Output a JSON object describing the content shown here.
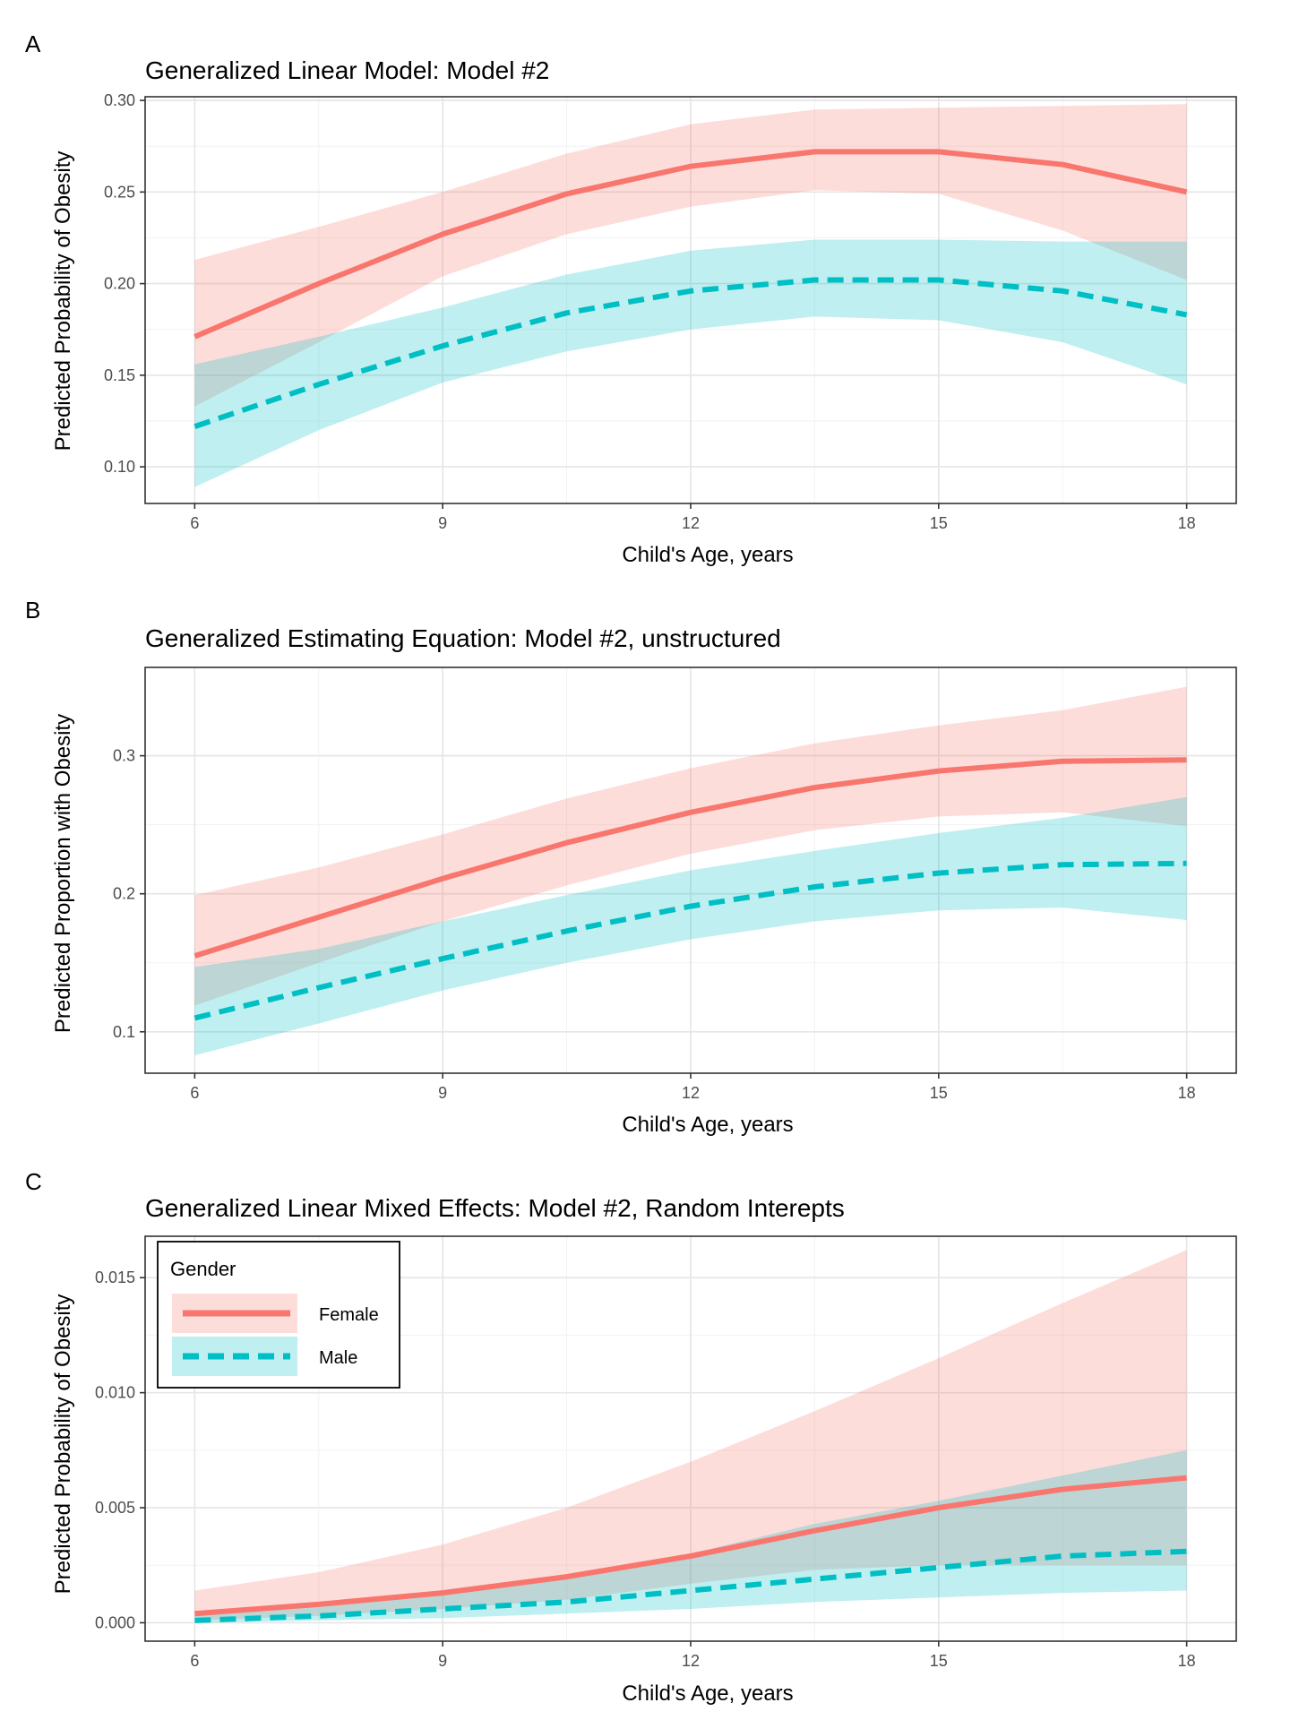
{
  "figure": {
    "x_label": "Child's Age, years",
    "legend": {
      "title": "Gender",
      "items": [
        {
          "label": "Female",
          "color": "#F8766D",
          "line": "solid"
        },
        {
          "label": "Male",
          "color": "#00BFC4",
          "line": "dashed"
        }
      ]
    }
  },
  "chart_data": [
    {
      "type": "line",
      "panel_letter": "A",
      "title": "Generalized Linear Model: Model #2",
      "xlabel": "Child's Age, years",
      "ylabel": "Predicted Probability of Obesity",
      "xlim": [
        5.4,
        18.6
      ],
      "ylim": [
        0.08,
        0.302
      ],
      "x_ticks": [
        6,
        9,
        12,
        15,
        18
      ],
      "x_tick_labels": [
        "6",
        "9",
        "12",
        "15",
        "18"
      ],
      "y_ticks": [
        0.1,
        0.15,
        0.2,
        0.25,
        0.3
      ],
      "y_tick_labels": [
        "0.10",
        "0.15",
        "0.20",
        "0.25",
        "0.30"
      ],
      "grid": true,
      "legend": false,
      "x": [
        6,
        7.5,
        9,
        10.5,
        12,
        13.5,
        15,
        16.5,
        18
      ],
      "series": [
        {
          "name": "Female",
          "color": "#F8766D",
          "line": "solid",
          "values": [
            0.171,
            0.2,
            0.227,
            0.249,
            0.264,
            0.272,
            0.272,
            0.265,
            0.25
          ],
          "lower": [
            0.133,
            0.168,
            0.204,
            0.227,
            0.242,
            0.251,
            0.249,
            0.229,
            0.202
          ],
          "upper": [
            0.213,
            0.231,
            0.25,
            0.271,
            0.287,
            0.295,
            0.296,
            0.297,
            0.298
          ]
        },
        {
          "name": "Male",
          "color": "#00BFC4",
          "line": "dashed",
          "values": [
            0.122,
            0.145,
            0.166,
            0.184,
            0.196,
            0.202,
            0.202,
            0.196,
            0.183
          ],
          "lower": [
            0.089,
            0.12,
            0.146,
            0.163,
            0.175,
            0.182,
            0.18,
            0.168,
            0.145
          ],
          "upper": [
            0.156,
            0.171,
            0.187,
            0.205,
            0.218,
            0.224,
            0.224,
            0.223,
            0.223
          ]
        }
      ]
    },
    {
      "type": "line",
      "panel_letter": "B",
      "title": "Generalized Estimating Equation: Model #2, unstructured",
      "xlabel": "Child's Age, years",
      "ylabel": "Predicted Proportion with Obesity",
      "xlim": [
        5.4,
        18.6
      ],
      "ylim": [
        0.07,
        0.364
      ],
      "x_ticks": [
        6,
        9,
        12,
        15,
        18
      ],
      "x_tick_labels": [
        "6",
        "9",
        "12",
        "15",
        "18"
      ],
      "y_ticks": [
        0.1,
        0.2,
        0.3
      ],
      "y_tick_labels": [
        "0.1",
        "0.2",
        "0.3"
      ],
      "grid": true,
      "legend": false,
      "x": [
        6,
        7.5,
        9,
        10.5,
        12,
        13.5,
        15,
        16.5,
        18
      ],
      "series": [
        {
          "name": "Female",
          "color": "#F8766D",
          "line": "solid",
          "values": [
            0.155,
            0.183,
            0.211,
            0.237,
            0.259,
            0.277,
            0.289,
            0.296,
            0.297
          ],
          "lower": [
            0.119,
            0.15,
            0.18,
            0.206,
            0.229,
            0.246,
            0.256,
            0.259,
            0.249
          ],
          "upper": [
            0.199,
            0.219,
            0.243,
            0.269,
            0.291,
            0.309,
            0.322,
            0.333,
            0.35
          ]
        },
        {
          "name": "Male",
          "color": "#00BFC4",
          "line": "dashed",
          "values": [
            0.11,
            0.132,
            0.153,
            0.173,
            0.191,
            0.205,
            0.215,
            0.221,
            0.222
          ],
          "lower": [
            0.083,
            0.106,
            0.13,
            0.15,
            0.167,
            0.18,
            0.188,
            0.19,
            0.181
          ],
          "upper": [
            0.147,
            0.16,
            0.18,
            0.199,
            0.217,
            0.231,
            0.244,
            0.255,
            0.27
          ]
        }
      ]
    },
    {
      "type": "line",
      "panel_letter": "C",
      "title": "Generalized Linear Mixed Effects: Model #2, Random Interepts",
      "xlabel": "Child's Age, years",
      "ylabel": "Predicted Probability of Obesity",
      "xlim": [
        5.4,
        18.6
      ],
      "ylim": [
        -0.0008,
        0.0168
      ],
      "x_ticks": [
        6,
        9,
        12,
        15,
        18
      ],
      "x_tick_labels": [
        "6",
        "9",
        "12",
        "15",
        "18"
      ],
      "y_ticks": [
        0.0,
        0.005,
        0.01,
        0.015
      ],
      "y_tick_labels": [
        "0.000",
        "0.005",
        "0.010",
        "0.015"
      ],
      "grid": true,
      "legend": "top-left",
      "x": [
        6,
        7.5,
        9,
        10.5,
        12,
        13.5,
        15,
        16.5,
        18
      ],
      "series": [
        {
          "name": "Female",
          "color": "#F8766D",
          "line": "solid",
          "values": [
            0.0004,
            0.0008,
            0.0013,
            0.002,
            0.0029,
            0.004,
            0.005,
            0.0058,
            0.0063
          ],
          "lower": [
            0.0001,
            0.0003,
            0.0006,
            0.001,
            0.0017,
            0.0023,
            0.0025,
            0.0025,
            0.0025
          ],
          "upper": [
            0.0014,
            0.0022,
            0.0034,
            0.005,
            0.007,
            0.0092,
            0.0115,
            0.0139,
            0.0162
          ]
        },
        {
          "name": "Male",
          "color": "#00BFC4",
          "line": "dashed",
          "values": [
            0.0001,
            0.0003,
            0.0006,
            0.0009,
            0.0014,
            0.0019,
            0.0024,
            0.0029,
            0.0031
          ],
          "lower": [
            0.0,
            0.0001,
            0.0002,
            0.0004,
            0.0006,
            0.0009,
            0.0011,
            0.0013,
            0.0014
          ],
          "upper": [
            0.0004,
            0.0008,
            0.0013,
            0.0021,
            0.003,
            0.0043,
            0.0053,
            0.0064,
            0.0075
          ]
        }
      ]
    }
  ]
}
